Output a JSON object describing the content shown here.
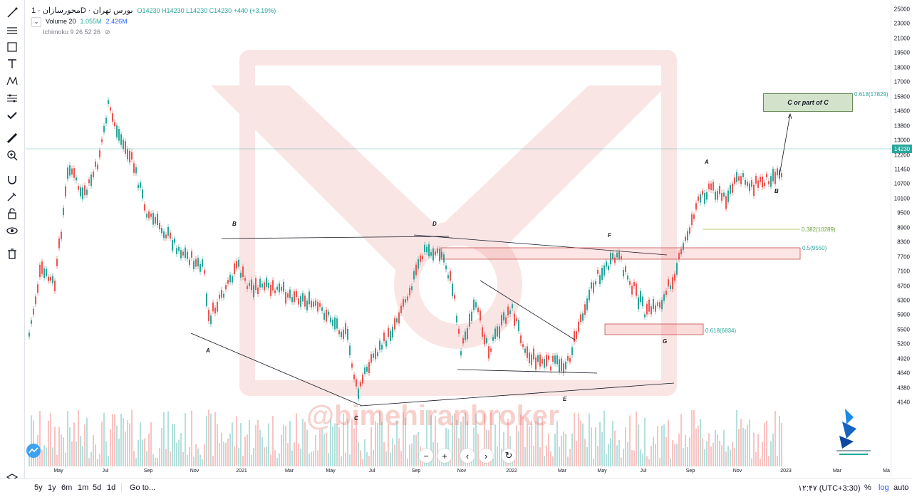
{
  "legend": {
    "symbol": "محورسازان · 1D · بورس تهران",
    "ohlc": "O14230 H14230 L14230 C14230 +440 (+3.19%)",
    "volume_name": "Volume 20",
    "volume_val1": "1.055M",
    "volume_val2": "2.426M",
    "ichimoku": "Ichimoku 9 26 52 26"
  },
  "price_axis": {
    "ticks": [
      "25000",
      "23000",
      "21000",
      "19500",
      "18000",
      "17000",
      "15800",
      "14600",
      "13800",
      "13000",
      "12200",
      "11450",
      "10700",
      "10100",
      "9500",
      "8900",
      "8300",
      "7700",
      "7100",
      "6700",
      "6300",
      "5900",
      "5500",
      "5200",
      "4920",
      "4640",
      "4380",
      "4140"
    ],
    "current_price": "14230"
  },
  "time_axis": {
    "ticks": [
      "May",
      "Jul",
      "Sep",
      "Nov",
      "2021",
      "Mar",
      "May",
      "Jul",
      "Sep",
      "Nov",
      "2022",
      "Mar",
      "May",
      "Jul",
      "Sep",
      "Nov",
      "2023",
      "Mar",
      "Ma"
    ]
  },
  "annotations": {
    "box_label": "C or part of C",
    "fib_1": "0.618(17829)",
    "fib_2": "0.382(10289)",
    "fib_3": "0.5(9550)",
    "fib_4": "0.618(6834)",
    "waves": [
      "B",
      "A",
      "C",
      "D",
      "E",
      "F",
      "G",
      "A",
      "B"
    ]
  },
  "watermark": "@bimehiranbroker",
  "bottom": {
    "ranges": [
      "5y",
      "1y",
      "6m",
      "1m",
      "5d",
      "1d"
    ],
    "goto": "Go to...",
    "time": "۱۲:۴۷ (UTC+3:30)",
    "percent": "%",
    "log": "log",
    "auto": "auto"
  },
  "colors": {
    "up": "#26a69a",
    "down": "#ef5350",
    "accent": "#2962ff"
  }
}
